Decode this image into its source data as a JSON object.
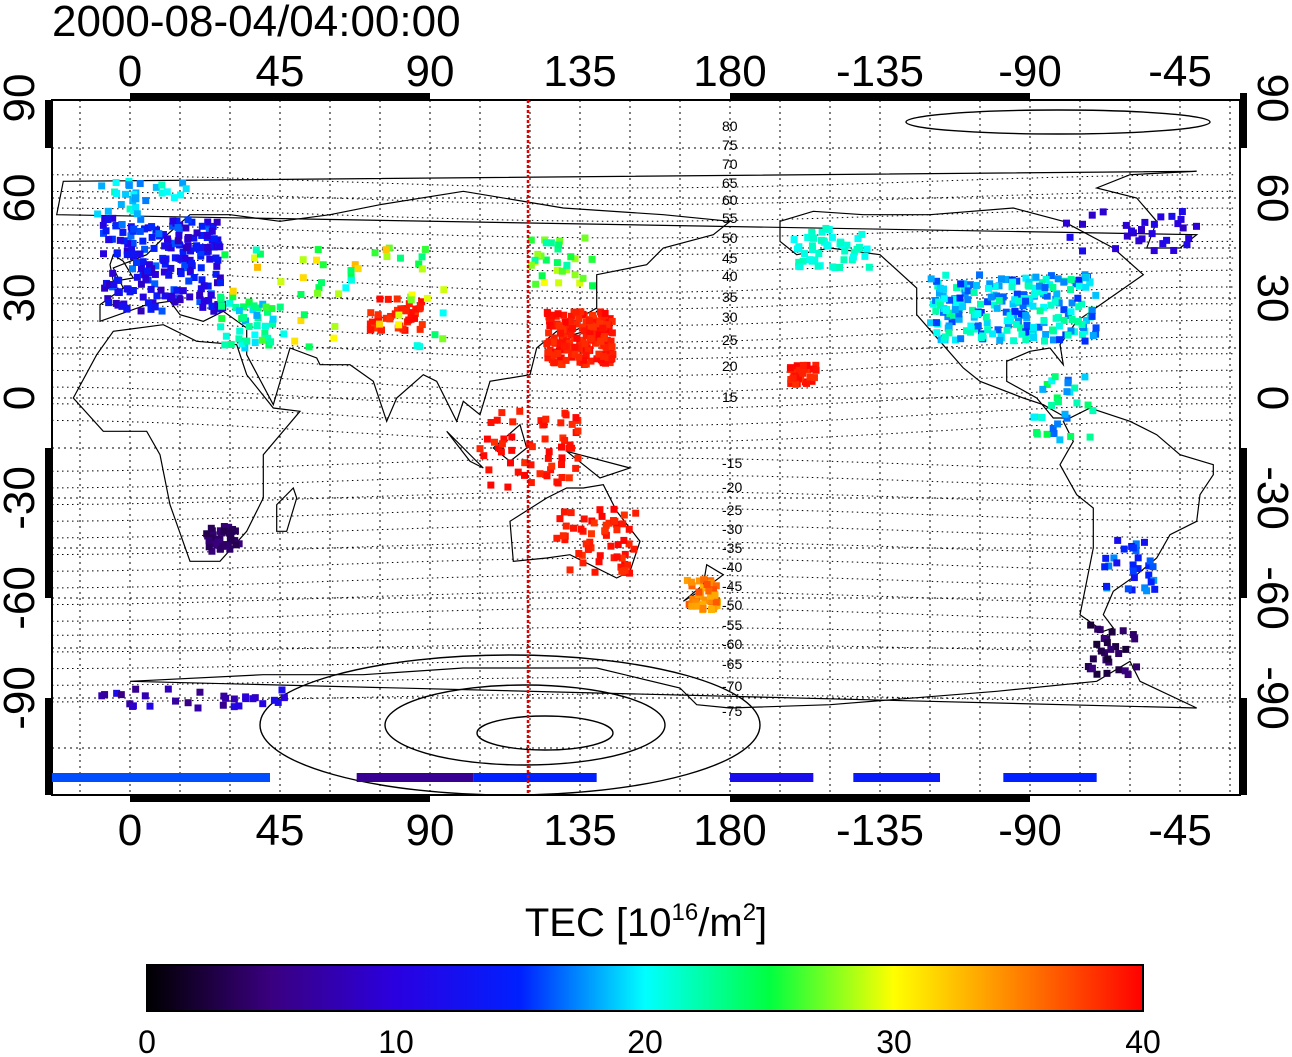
{
  "title": "2000-08-04/04:00:00",
  "map": {
    "lon_labels": [
      "0",
      "45",
      "90",
      "135",
      "180",
      "-135",
      "-90",
      "-45"
    ],
    "lat_labels": [
      "90",
      "60",
      "30",
      "0",
      "-30",
      "-60",
      "-90"
    ],
    "contour_labels_north": [
      "80",
      "75",
      "70",
      "65",
      "60",
      "55",
      "50",
      "45",
      "40",
      "35",
      "30",
      "25",
      "20",
      "15"
    ],
    "contour_labels_south": [
      "-15",
      "-20",
      "-25",
      "-30",
      "-35",
      "-40",
      "-45",
      "-50",
      "-55",
      "-60",
      "-65",
      "-70",
      "-75"
    ],
    "meridian_line_color": "#e00000"
  },
  "colorbar": {
    "title_main": "TEC  [10",
    "title_exp": "16",
    "title_unit": "/m",
    "title_exp2": "2",
    "title_close": "]",
    "ticks": [
      "0",
      "10",
      "20",
      "30",
      "40"
    ],
    "stops": [
      "#000000",
      "#3a0080",
      "#2a00e0",
      "#0020ff",
      "#00ffff",
      "#00ff40",
      "#ffff00",
      "#ff8000",
      "#ff0000"
    ]
  }
}
